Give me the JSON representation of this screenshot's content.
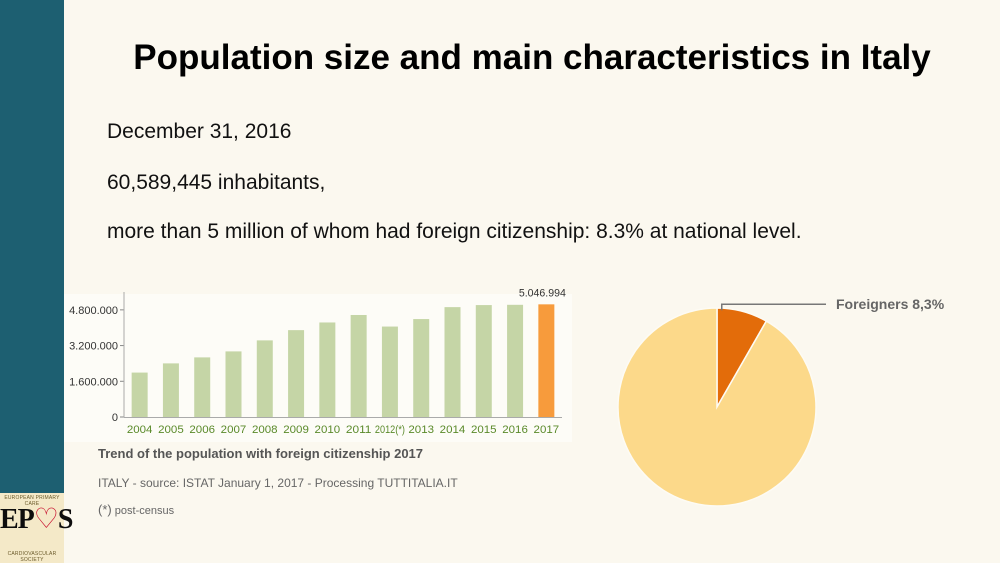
{
  "slide": {
    "title": "Population size and main characteristics in Italy",
    "lines": [
      "December 31, 2016",
      "60,589,445 inhabitants,",
      "more than 5 million of whom had foreign citizenship: 8.3% at national level."
    ],
    "logo": {
      "word_left": "EP",
      "word_right": "S",
      "top_text": "EUROPEAN PRIMARY CARE",
      "bottom_text": "CARDIOVASCULAR SOCIETY"
    }
  },
  "captions": {
    "title": "Trend of the population with foreign citizenship 2017",
    "source": "ITALY - source: ISTAT January 1, 2017 - Processing TUTTITALIA.IT",
    "note_mark": "(*)",
    "note_text": "post-census"
  },
  "colors": {
    "bar": "#c5d5a6",
    "bar_highlight": "#f79b3c",
    "pie_main": "#fcd98a",
    "pie_slice": "#e36c0a",
    "axis_text": "#5a8a2a"
  },
  "chart_data": [
    {
      "type": "bar",
      "categories": [
        "2004",
        "2005",
        "2006",
        "2007",
        "2008",
        "2009",
        "2010",
        "2011",
        "2012(*)",
        "2013",
        "2014",
        "2015",
        "2016",
        "2017"
      ],
      "values": [
        1990159,
        2402157,
        2670514,
        2938922,
        3432651,
        3891295,
        4235059,
        4570317,
        4052081,
        4387721,
        4922085,
        5014437,
        5026153,
        5046994
      ],
      "highlight_index": 13,
      "data_label": "5.046.994",
      "yticks": [
        0,
        1600000,
        3200000,
        4800000
      ],
      "ytick_labels": [
        "0",
        "1.600.000",
        "3.200.000",
        "4.800.000"
      ],
      "ylim": [
        0,
        5600000
      ]
    },
    {
      "type": "pie",
      "slices": [
        {
          "label": "Foreigners 8,3%",
          "value": 8.3
        },
        {
          "label": "",
          "value": 91.7
        }
      ]
    }
  ]
}
